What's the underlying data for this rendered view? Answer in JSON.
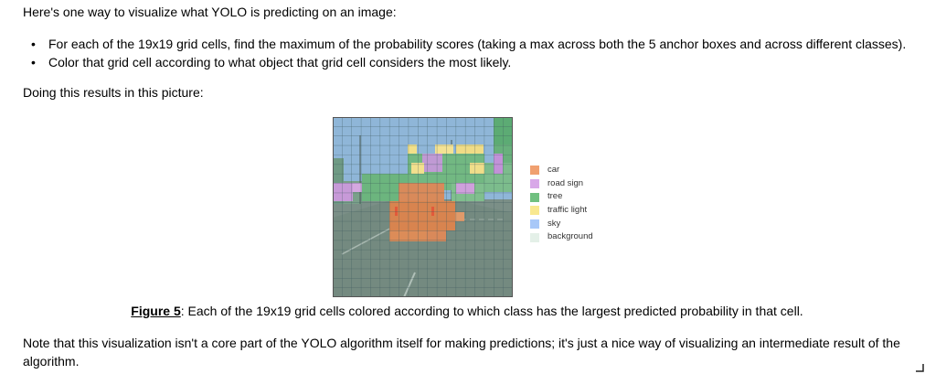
{
  "intro": "Here's one way to visualize what YOLO is predicting on an image:",
  "bullets": [
    "For each of the 19x19 grid cells, find the maximum of the probability scores (taking a max across both the 5 anchor boxes and across different classes).",
    "Color that grid cell according to what object that grid cell considers the most likely."
  ],
  "para2": "Doing this results in this picture:",
  "figure": {
    "legend": [
      {
        "label": "car",
        "color": "#f0a070"
      },
      {
        "label": "road sign",
        "color": "#d8a8e8"
      },
      {
        "label": "tree",
        "color": "#70c080"
      },
      {
        "label": "traffic light",
        "color": "#f8e890"
      },
      {
        "label": "sky",
        "color": "#a8c8f8"
      },
      {
        "label": "background",
        "color": "#e4f0e8"
      }
    ]
  },
  "caption": {
    "label": "Figure 5",
    "text": ": Each of the 19x19 grid cells colored according to which class has the largest predicted probability in that cell."
  },
  "note": "Note that this visualization isn't a core part of the YOLO algorithm itself for making predictions; it's just a nice way of visualizing an intermediate result of the algorithm."
}
